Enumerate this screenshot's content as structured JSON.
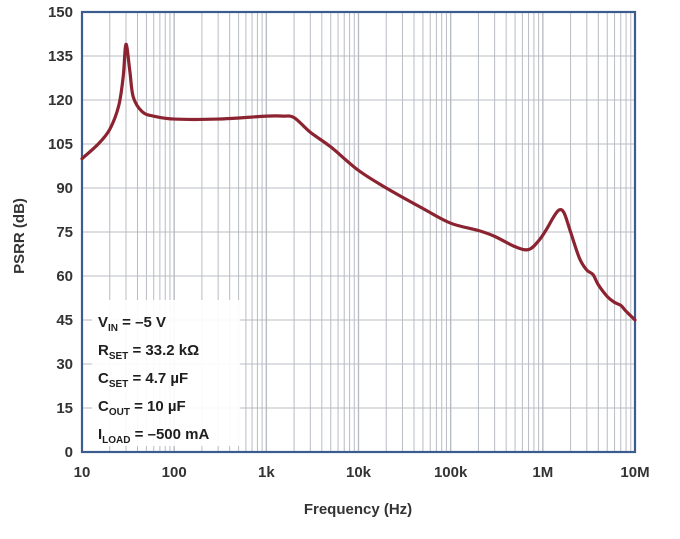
{
  "chart_data": {
    "type": "line",
    "xscale": "log",
    "xlim": [
      10,
      10000000
    ],
    "ylim": [
      0,
      150
    ],
    "grid": true,
    "xlabel": "Frequency (Hz)",
    "ylabel": "PSRR (dB)",
    "x_ticks": [
      {
        "value": 10,
        "label": "10"
      },
      {
        "value": 100,
        "label": "100"
      },
      {
        "value": 1000,
        "label": "1k"
      },
      {
        "value": 10000,
        "label": "10k"
      },
      {
        "value": 100000,
        "label": "100k"
      },
      {
        "value": 1000000,
        "label": "1M"
      },
      {
        "value": 10000000,
        "label": "10M"
      }
    ],
    "y_ticks": [
      0,
      15,
      30,
      45,
      60,
      75,
      90,
      105,
      120,
      135,
      150
    ],
    "series": [
      {
        "color": "#8b2330",
        "points": [
          [
            10,
            100
          ],
          [
            15,
            105
          ],
          [
            20,
            110
          ],
          [
            25,
            118
          ],
          [
            28,
            128
          ],
          [
            30,
            139
          ],
          [
            33,
            130
          ],
          [
            36,
            121
          ],
          [
            45,
            116
          ],
          [
            60,
            114.5
          ],
          [
            100,
            113.5
          ],
          [
            300,
            113.5
          ],
          [
            1000,
            114.5
          ],
          [
            1500,
            114.5
          ],
          [
            2000,
            114
          ],
          [
            3000,
            109
          ],
          [
            5000,
            104
          ],
          [
            10000,
            96
          ],
          [
            20000,
            90
          ],
          [
            50000,
            83
          ],
          [
            100000,
            78
          ],
          [
            200000,
            75.5
          ],
          [
            300000,
            73.5
          ],
          [
            500000,
            70
          ],
          [
            700000,
            69
          ],
          [
            900000,
            72
          ],
          [
            1100000,
            76
          ],
          [
            1300000,
            80
          ],
          [
            1500000,
            82.5
          ],
          [
            1700000,
            81.5
          ],
          [
            2000000,
            75
          ],
          [
            2500000,
            66
          ],
          [
            3000000,
            62
          ],
          [
            3500000,
            60.5
          ],
          [
            4000000,
            57
          ],
          [
            5000000,
            53
          ],
          [
            6000000,
            51
          ],
          [
            7000000,
            50
          ],
          [
            8000000,
            48
          ],
          [
            10000000,
            45
          ]
        ]
      }
    ],
    "annotation": {
      "position": "bottom-left",
      "lines": [
        {
          "main": "V",
          "sub": "IN",
          "rest": " = –5 V"
        },
        {
          "main": "R",
          "sub": "SET",
          "rest": " = 33.2 kΩ"
        },
        {
          "main": "C",
          "sub": "SET",
          "rest": " = 4.7 µF"
        },
        {
          "main": "C",
          "sub": "OUT",
          "rest": " = 10 µF"
        },
        {
          "main": "I",
          "sub": "LOAD",
          "rest": " = –500 mA"
        }
      ]
    },
    "colors": {
      "frame": "#3b5c8f",
      "grid": "#b8bcc4",
      "line": "#8b2330",
      "text": "#333333"
    }
  }
}
